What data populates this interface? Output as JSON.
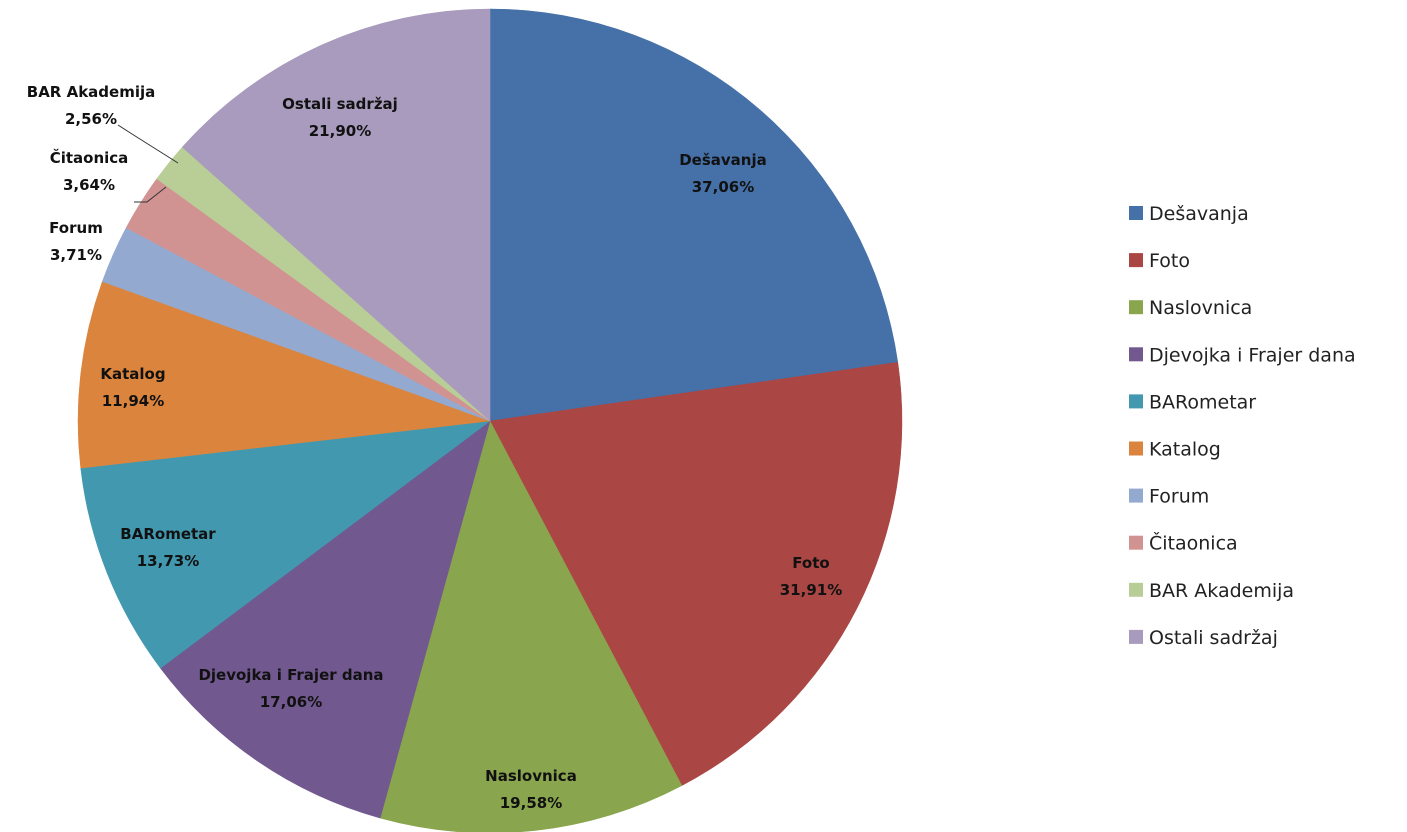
{
  "chart_data": {
    "type": "pie",
    "title": "",
    "legend_position": "right",
    "slices": [
      {
        "name": "Dešavanja",
        "value": 37.06,
        "value_label": "37,06%",
        "color": "#4571A8"
      },
      {
        "name": "Foto",
        "value": 31.91,
        "value_label": "31,91%",
        "color": "#AA4643"
      },
      {
        "name": "Naslovnica",
        "value": 19.58,
        "value_label": "19,58%",
        "color": "#89A54E"
      },
      {
        "name": "Djevojka i Frajer dana",
        "value": 17.06,
        "value_label": "17,06%",
        "color": "#71588F"
      },
      {
        "name": "BARometar",
        "value": 13.73,
        "value_label": "13,73%",
        "color": "#4198AF"
      },
      {
        "name": "Katalog",
        "value": 11.94,
        "value_label": "11,94%",
        "color": "#DB843D"
      },
      {
        "name": "Forum",
        "value": 3.71,
        "value_label": "3,71%",
        "color": "#93A9CF"
      },
      {
        "name": "Čitaonica",
        "value": 3.64,
        "value_label": "3,64%",
        "color": "#D19392"
      },
      {
        "name": "BAR Akademija",
        "value": 2.56,
        "value_label": "2,56%",
        "color": "#B9CD96"
      },
      {
        "name": "Ostali sadržaj",
        "value": 21.9,
        "value_label": "21,90%",
        "color": "#A99BBD"
      }
    ]
  }
}
